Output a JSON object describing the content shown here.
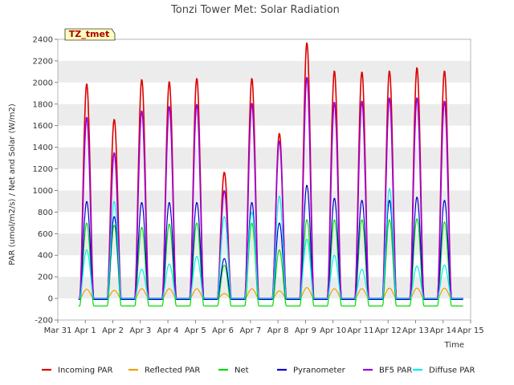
{
  "chart_data": {
    "type": "line",
    "title": "Tonzi Tower Met: Solar Radiation",
    "xlabel": "Time",
    "ylabel": "PAR (umol/m2/s) / Net and Solar (W/m2)",
    "ylim": [
      -200,
      2400
    ],
    "yticks": [
      -200,
      0,
      200,
      400,
      600,
      800,
      1000,
      1200,
      1400,
      1600,
      1800,
      2000,
      2200,
      2400
    ],
    "xlim": [
      0,
      15
    ],
    "xticks": [
      {
        "x": 0,
        "label": "Mar 31"
      },
      {
        "x": 1,
        "label": "Apr 1"
      },
      {
        "x": 2,
        "label": "Apr 2"
      },
      {
        "x": 3,
        "label": "Apr 3"
      },
      {
        "x": 4,
        "label": "Apr 4"
      },
      {
        "x": 5,
        "label": "Apr 5"
      },
      {
        "x": 6,
        "label": "Apr 6"
      },
      {
        "x": 7,
        "label": "Apr 7"
      },
      {
        "x": 8,
        "label": "Apr 8"
      },
      {
        "x": 9,
        "label": "Apr 9"
      },
      {
        "x": 10,
        "label": "Apr 10"
      },
      {
        "x": 11,
        "label": "Apr 11"
      },
      {
        "x": 12,
        "label": "Apr 12"
      },
      {
        "x": 13,
        "label": "Apr 13"
      },
      {
        "x": 14,
        "label": "Apr 14"
      },
      {
        "x": 15,
        "label": "Apr 15"
      }
    ],
    "grid": "horizontal bands",
    "badge": "TZ_tmet",
    "legend_position": "bottom",
    "days": [
      "Apr 1",
      "Apr 2",
      "Apr 3",
      "Apr 4",
      "Apr 5",
      "Apr 6",
      "Apr 7",
      "Apr 8",
      "Apr 9",
      "Apr 10",
      "Apr 11",
      "Apr 12",
      "Apr 13",
      "Apr 14"
    ],
    "series": [
      {
        "name": "Incoming PAR",
        "color": "#dd0000",
        "daily_peak": [
          1990,
          1660,
          2030,
          2010,
          2040,
          1170,
          2040,
          1530,
          2370,
          2110,
          2100,
          2110,
          2140,
          2110
        ],
        "night": 0
      },
      {
        "name": "Reflected PAR",
        "color": "#f0a000",
        "daily_peak": [
          85,
          75,
          90,
          90,
          90,
          45,
          90,
          70,
          100,
          90,
          90,
          95,
          95,
          95
        ],
        "night": 0
      },
      {
        "name": "Net",
        "color": "#00dd00",
        "daily_peak": [
          700,
          680,
          660,
          690,
          700,
          310,
          700,
          450,
          730,
          730,
          730,
          730,
          740,
          710
        ],
        "night": -70
      },
      {
        "name": "Pyranometer",
        "color": "#0000cc",
        "daily_peak": [
          900,
          760,
          890,
          890,
          890,
          370,
          890,
          700,
          1050,
          930,
          910,
          910,
          940,
          910
        ],
        "night": -10
      },
      {
        "name": "BF5 PAR",
        "color": "#9900dd",
        "daily_peak": [
          1680,
          1350,
          1740,
          1780,
          1800,
          1000,
          1810,
          1460,
          2050,
          1820,
          1830,
          1860,
          1860,
          1830
        ],
        "night": 0
      },
      {
        "name": "Diffuse PAR",
        "color": "#00eeee",
        "daily_peak": [
          450,
          900,
          270,
          320,
          390,
          760,
          800,
          950,
          550,
          400,
          270,
          1020,
          300,
          310
        ],
        "night": 0
      }
    ]
  }
}
